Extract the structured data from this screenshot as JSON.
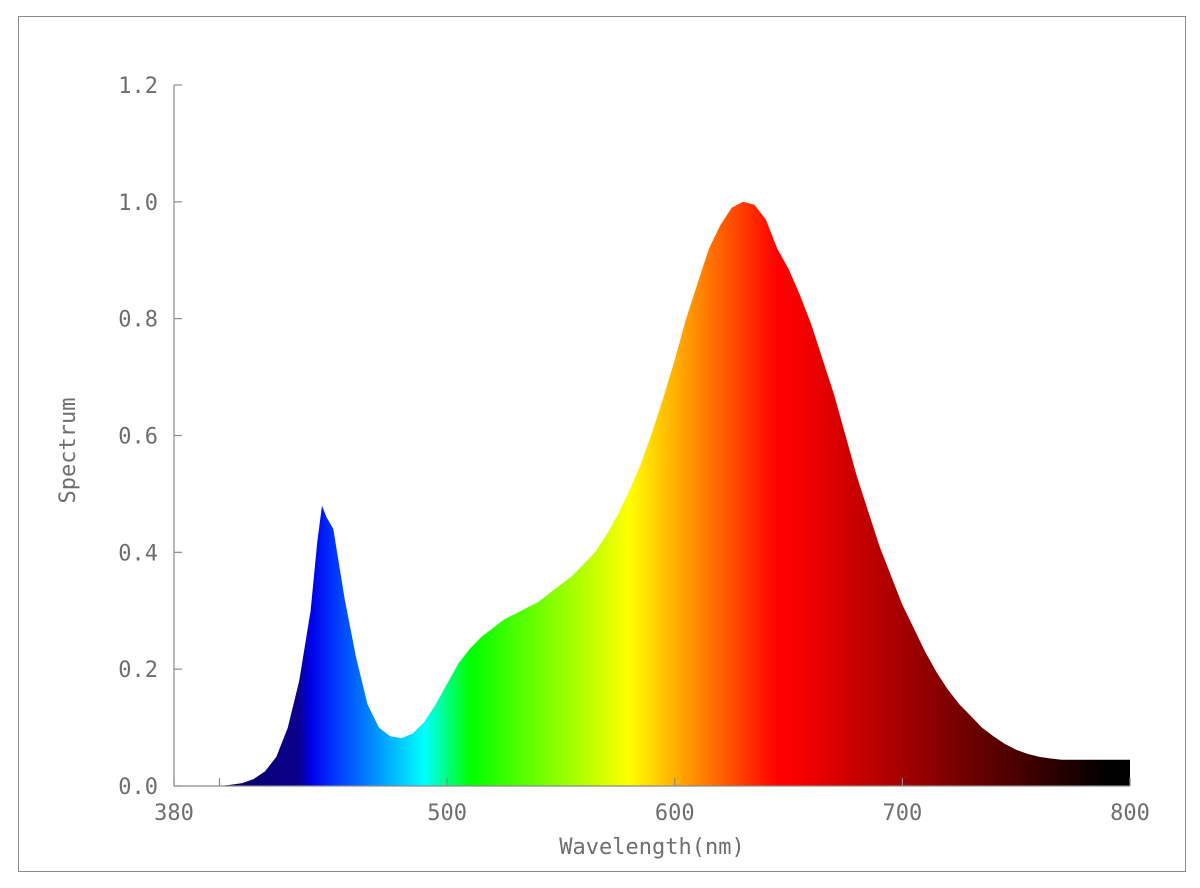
{
  "chart_data": {
    "type": "area",
    "title": "",
    "xlabel": "Wavelength(nm)",
    "ylabel": "Spectrum",
    "xlim": [
      380,
      800
    ],
    "ylim": [
      0,
      1.2
    ],
    "x_ticks": [
      380,
      500,
      600,
      700,
      800
    ],
    "x_tick_labels": [
      "380",
      "500",
      "600",
      "700",
      "800"
    ],
    "y_ticks": [
      0.0,
      0.2,
      0.4,
      0.6,
      0.8,
      1.0,
      1.2
    ],
    "y_tick_labels": [
      "0.0",
      "0.2",
      "0.4",
      "0.6",
      "0.8",
      "1.0",
      "1.2"
    ],
    "grid": false,
    "fill": "visible-spectrum color gradient (blue to red to black)",
    "series": [
      {
        "x": [
          400,
          405,
          410,
          415,
          420,
          425,
          430,
          435,
          440,
          443,
          445,
          447,
          450,
          455,
          460,
          465,
          470,
          475,
          480,
          485,
          490,
          495,
          500,
          505,
          510,
          515,
          520,
          525,
          530,
          535,
          540,
          545,
          550,
          555,
          560,
          565,
          570,
          575,
          580,
          585,
          590,
          595,
          600,
          605,
          610,
          615,
          620,
          625,
          630,
          635,
          640,
          645,
          650,
          655,
          660,
          665,
          670,
          675,
          680,
          685,
          690,
          695,
          700,
          705,
          710,
          715,
          720,
          725,
          730,
          735,
          740,
          745,
          750,
          755,
          760,
          765,
          770,
          775,
          780,
          785,
          790,
          795,
          800
        ],
        "values": [
          0.0,
          0.002,
          0.005,
          0.012,
          0.025,
          0.05,
          0.1,
          0.18,
          0.3,
          0.42,
          0.48,
          0.46,
          0.44,
          0.32,
          0.22,
          0.14,
          0.1,
          0.085,
          0.082,
          0.09,
          0.11,
          0.14,
          0.175,
          0.21,
          0.235,
          0.255,
          0.27,
          0.285,
          0.295,
          0.305,
          0.315,
          0.33,
          0.345,
          0.36,
          0.38,
          0.4,
          0.43,
          0.465,
          0.505,
          0.55,
          0.605,
          0.665,
          0.73,
          0.8,
          0.86,
          0.92,
          0.96,
          0.99,
          1.0,
          0.995,
          0.97,
          0.92,
          0.885,
          0.84,
          0.79,
          0.73,
          0.67,
          0.6,
          0.53,
          0.47,
          0.41,
          0.36,
          0.31,
          0.27,
          0.23,
          0.195,
          0.165,
          0.14,
          0.12,
          0.1,
          0.085,
          0.072,
          0.062,
          0.055,
          0.05,
          0.047,
          0.045,
          0.045,
          0.045,
          0.045,
          0.045,
          0.045,
          0.045
        ]
      }
    ]
  }
}
